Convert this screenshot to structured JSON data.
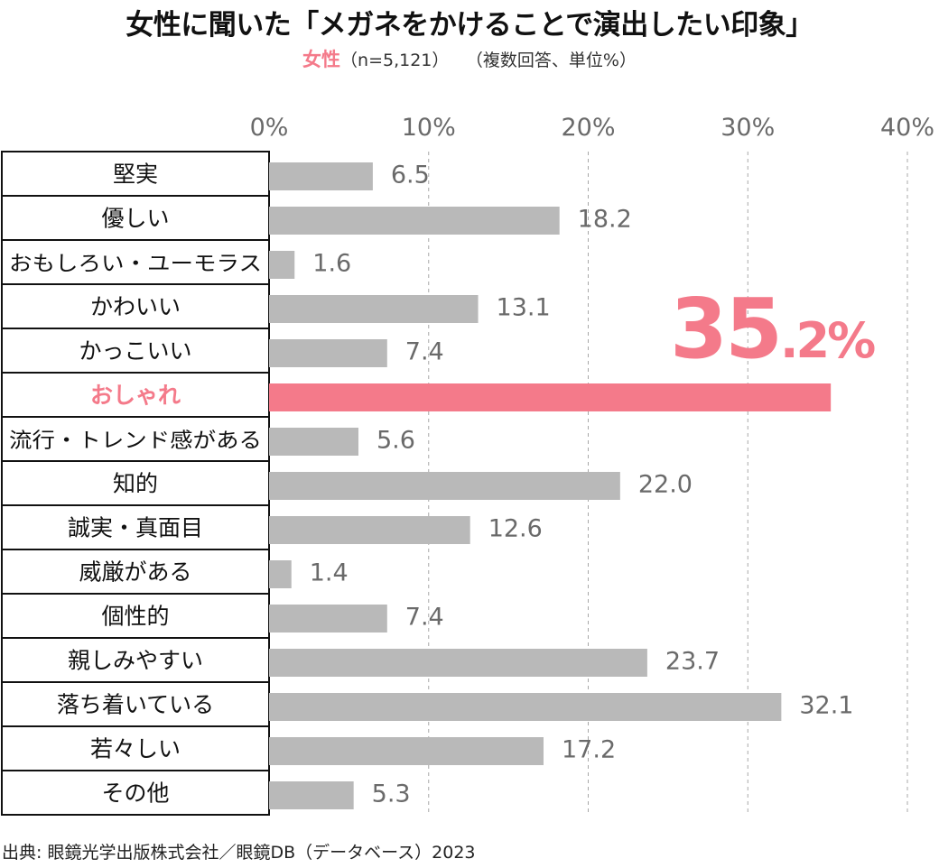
{
  "title": "女性に聞いた「メガネをかけることで演出したい印象」",
  "subtitle": {
    "segment": "女性",
    "sample": "（n=5,121）",
    "note": "（複数回答、単位%）"
  },
  "callout": {
    "number": "35",
    "decimal": ".2%"
  },
  "source": "出典: 眼鏡光学出版株式会社／眼鏡DB（データベース）2023",
  "colors": {
    "bar": "#b9b9b9",
    "highlight": "#f47a8a",
    "grid": "#a8a8a8",
    "value_text": "#6a6a6a",
    "axis_text": "#6a6a6a"
  },
  "chart_data": {
    "type": "bar",
    "orientation": "horizontal",
    "title": "女性に聞いた「メガネをかけることで演出したい印象」",
    "xlabel": "",
    "ylabel": "",
    "xlim": [
      0,
      40
    ],
    "ticks": [
      "0%",
      "10%",
      "20%",
      "30%",
      "40%"
    ],
    "tick_values": [
      0,
      10,
      20,
      30,
      40
    ],
    "grid": "dashed vertical",
    "highlight_index": 5,
    "categories": [
      "堅実",
      "優しい",
      "おもしろい・ユーモラス",
      "かわいい",
      "かっこいい",
      "おしゃれ",
      "流行・トレンド感がある",
      "知的",
      "誠実・真面目",
      "威厳がある",
      "個性的",
      "親しみやすい",
      "落ち着いている",
      "若々しい",
      "その他"
    ],
    "values": [
      6.5,
      18.2,
      1.6,
      13.1,
      7.4,
      35.2,
      5.6,
      22.0,
      12.6,
      1.4,
      7.4,
      23.7,
      32.1,
      17.2,
      5.3
    ],
    "labels": [
      "6.5",
      "18.2",
      "1.6",
      "13.1",
      "7.4",
      "",
      "5.6",
      "22.0",
      "12.6",
      "1.4",
      "7.4",
      "23.7",
      "32.1",
      "17.2",
      "5.3"
    ]
  }
}
